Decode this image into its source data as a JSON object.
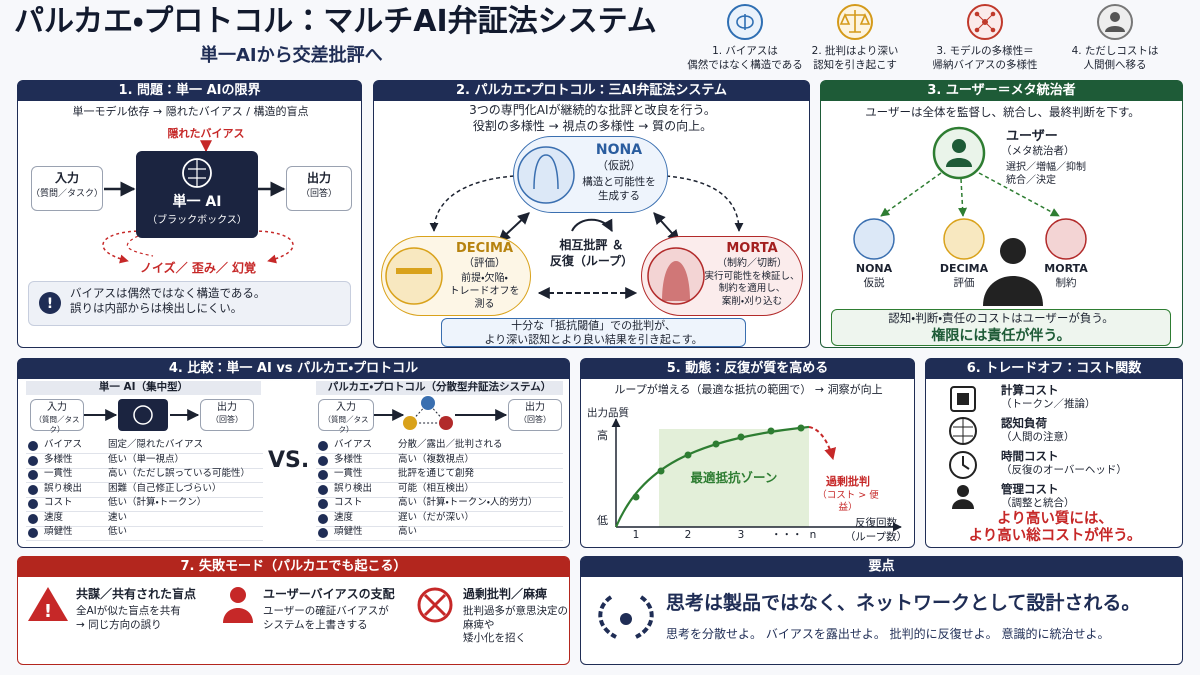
{
  "header": {
    "title": "パルカエ・プロトコル：マルチAI弁証法システム",
    "subtitle": "単一AIから交差批評へ",
    "principles": [
      "1. バイアスは\n偶然ではなく構造である",
      "2. 批判はより深い\n認知を引き起こす",
      "3. モデルの多様性＝\n帰納バイアスの多様性",
      "4. ただしコストは\n人間側へ移る"
    ]
  },
  "problem": {
    "title": "1. 問題：単一 AIの限界",
    "subtitle": "単一モデル依存 → 隠れたバイアス / 構造的盲点",
    "hidden_bias": "隠れたバイアス",
    "input": "入力",
    "input_sub": "（質問／タスク）",
    "ai": "単一 AI",
    "ai_sub": "（ブラックボックス）",
    "output": "出力",
    "output_sub": "（回答）",
    "noise": "ノイズ／ 歪み／ 幻覚",
    "note": "バイアスは偶然ではなく構造である。\n誤りは内部からは検出しにくい。"
  },
  "protocol": {
    "title": "2. パルカエ・プロトコル：三AI弁証法システム",
    "description": "3つの専門化AIが継続的な批評と改良を行う。\n役割の多様性 → 視点の多様性 → 質の向上。",
    "nona": {
      "name": "NONA",
      "role": "（仮説）",
      "text": "構造と可能性を\n生成する"
    },
    "decima": {
      "name": "DECIMA",
      "role": "（評価）",
      "text": "前提・欠陥・\nトレードオフを\n測る"
    },
    "morta": {
      "name": "MORTA",
      "role": "（制約／切断）",
      "text": "実行可能性を検証し、\n制約を適用し、\n案削・刈り込む"
    },
    "center": "相互批評 ＆\n反復（ループ）",
    "footer": "十分な「抵抗閾値」での批判が、\nより深い認知とより良い結果を引き起こす。"
  },
  "user": {
    "title": "3. ユーザー＝メタ統治者",
    "description": "ユーザーは全体を監督し、統合し、最終判断を下す。",
    "name": "ユーザー",
    "role": "（メタ統治者）",
    "actions": "選択／増幅／抑制\n統合／決定",
    "agents": [
      {
        "name": "NONA",
        "role": "仮説"
      },
      {
        "name": "DECIMA",
        "role": "評価"
      },
      {
        "name": "MORTA",
        "role": "制約"
      }
    ],
    "footer": "認知・判断・責任のコストはユーザーが負う。",
    "emphasis": "権限には責任が伴う。"
  },
  "comparison": {
    "title": "4. 比較：単一 AI vs パルカエ・プロトコル",
    "left_head": "単一 AI（集中型）",
    "right_head": "パルカエ・プロトコル（分散型弁証法システム）",
    "input": "入力",
    "input_sub": "（質問／タスク）",
    "output": "出力",
    "output_sub": "（回答）",
    "vs": "VS.",
    "rows": [
      [
        "バイアス",
        "固定／隠れたバイアス",
        "分散／露出／批判される"
      ],
      [
        "多様性",
        "低い（単一視点）",
        "高い（複数視点）"
      ],
      [
        "一貫性",
        "高い（ただし誤っている可能性）",
        "批評を通じて創発"
      ],
      [
        "誤り検出",
        "困難（自己修正しづらい）",
        "可能（相互検出）"
      ],
      [
        "コスト",
        "低い（計算・トークン）",
        "高い（計算・トークン・人的労力）"
      ],
      [
        "速度",
        "速い",
        "遅い（だが深い）"
      ],
      [
        "頑健性",
        "低い",
        "高い"
      ]
    ]
  },
  "dynamics": {
    "title": "5. 動態：反復が質を高める",
    "description": "ループが増える（最適な抵抗の範囲で） → 洞察が向上",
    "y_label": "出力品質",
    "y_high": "高",
    "y_low": "低",
    "x_ticks": [
      "1",
      "2",
      "3",
      "・・・",
      "n"
    ],
    "x_label": "反復回数\n（ループ数）",
    "zone": "最適抵抗ゾーン",
    "over": "過剰批判",
    "over_sub": "（コスト > 便益）"
  },
  "tradeoff": {
    "title": "6. トレードオフ：コスト関数",
    "items": [
      {
        "name": "計算コスト",
        "sub": "（トークン／推論）"
      },
      {
        "name": "認知負荷",
        "sub": "（人間の注意）"
      },
      {
        "name": "時間コスト",
        "sub": "（反復のオーバーヘッド）"
      },
      {
        "name": "管理コスト",
        "sub": "（調整と統合）"
      }
    ],
    "conclusion": "より高い質には、\nより高い総コストが伴う。"
  },
  "failures": {
    "title": "7. 失敗モード（パルカエでも起こる）",
    "items": [
      {
        "name": "共謀／共有された盲点",
        "text": "全AIが似た盲点を共有\n→ 同じ方向の誤り"
      },
      {
        "name": "ユーザーバイアスの支配",
        "text": "ユーザーの確証バイアスが\nシステムを上書きする"
      },
      {
        "name": "過剰批判／麻痺",
        "text": "批判過多が意思決定の麻痺や\n矮小化を招く"
      }
    ]
  },
  "summary": {
    "title": "要点",
    "main": "思考は製品ではなく、ネットワークとして設計される。",
    "sub": "思考を分散せよ。 バイアスを露出せよ。 批判的に反復せよ。 意識的に統治せよ。"
  }
}
